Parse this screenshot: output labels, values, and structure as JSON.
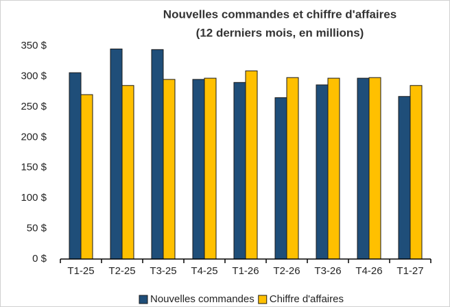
{
  "chart_data": {
    "type": "bar",
    "title": "Nouvelles commandes et chiffre d'affaires",
    "subtitle": "(12 derniers mois, en millions)",
    "categories": [
      "T1-25",
      "T2-25",
      "T3-25",
      "T4-25",
      "T1-26",
      "T2-26",
      "T3-26",
      "T4-26",
      "T1-27"
    ],
    "series": [
      {
        "name": "Nouvelles commandes",
        "color": "#1f4e79",
        "values": [
          306,
          345,
          344,
          295,
          290,
          265,
          286,
          297,
          267
        ]
      },
      {
        "name": "Chiffre d'affaires",
        "color": "#ffc000",
        "values": [
          270,
          285,
          295,
          297,
          309,
          298,
          297,
          298,
          285
        ]
      }
    ],
    "ylim": [
      0,
      350
    ],
    "yticks": [
      {
        "value": 0,
        "label": "0 $"
      },
      {
        "value": 50,
        "label": "50 $"
      },
      {
        "value": 100,
        "label": "100 $"
      },
      {
        "value": 150,
        "label": "150 $"
      },
      {
        "value": 200,
        "label": "200 $"
      },
      {
        "value": 250,
        "label": "250 $"
      },
      {
        "value": 300,
        "label": "300 $"
      },
      {
        "value": 350,
        "label": "350 $"
      }
    ],
    "grid": false,
    "legend": "bottom"
  }
}
